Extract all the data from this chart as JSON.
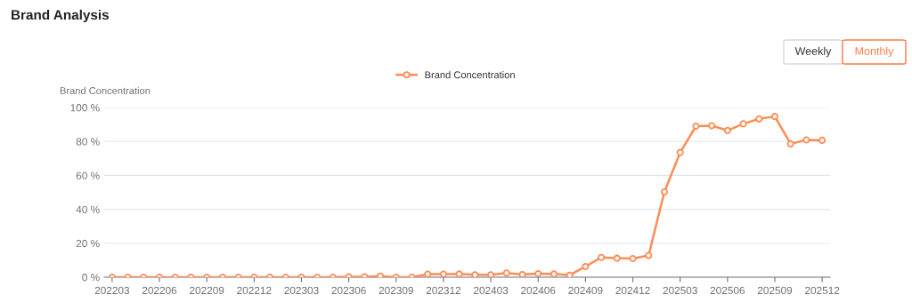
{
  "chart_data": {
    "type": "line",
    "title": "Brand Analysis",
    "ylabel": "Brand Concentration",
    "categories": [
      "202203",
      null,
      null,
      "202206",
      null,
      null,
      "202209",
      null,
      null,
      "202212",
      null,
      null,
      "202303",
      null,
      null,
      "202306",
      null,
      null,
      "202309",
      null,
      null,
      "202312",
      null,
      null,
      "202403",
      null,
      null,
      "202406",
      null,
      null,
      "202409",
      null,
      null,
      "202412",
      null,
      null,
      "202503",
      null,
      null,
      "202506",
      null,
      null,
      "202509",
      null,
      null,
      "202512"
    ],
    "series": [
      {
        "name": "Brand Concentration",
        "color": "#ff8c55",
        "values": [
          0,
          0,
          0,
          0,
          0,
          0,
          0,
          0,
          0,
          0,
          0,
          0,
          0,
          0,
          0,
          0.2,
          0.3,
          0.7,
          0,
          0,
          1.8,
          1.8,
          1.9,
          1.4,
          1.4,
          2.5,
          1.6,
          2.1,
          1.9,
          1.2,
          6.3,
          11.7,
          11.2,
          11.0,
          12.8,
          50.3,
          73.5,
          89.0,
          89.3,
          86.5,
          90.4,
          93.3,
          94.7,
          78.6,
          80.9,
          80.7
        ]
      }
    ],
    "ylim": [
      0,
      100
    ],
    "yticks": [
      {
        "value": 0,
        "label": "0 %"
      },
      {
        "value": 20,
        "label": "20 %"
      },
      {
        "value": 40,
        "label": "40 %"
      },
      {
        "value": 60,
        "label": "60 %"
      },
      {
        "value": 80,
        "label": "80 %"
      },
      {
        "value": 100,
        "label": "100 %"
      }
    ],
    "grid": "y",
    "legend": "top",
    "marker": "circle",
    "line_style": "solid",
    "annotations": [
      "Weekly",
      "Monthly"
    ]
  }
}
